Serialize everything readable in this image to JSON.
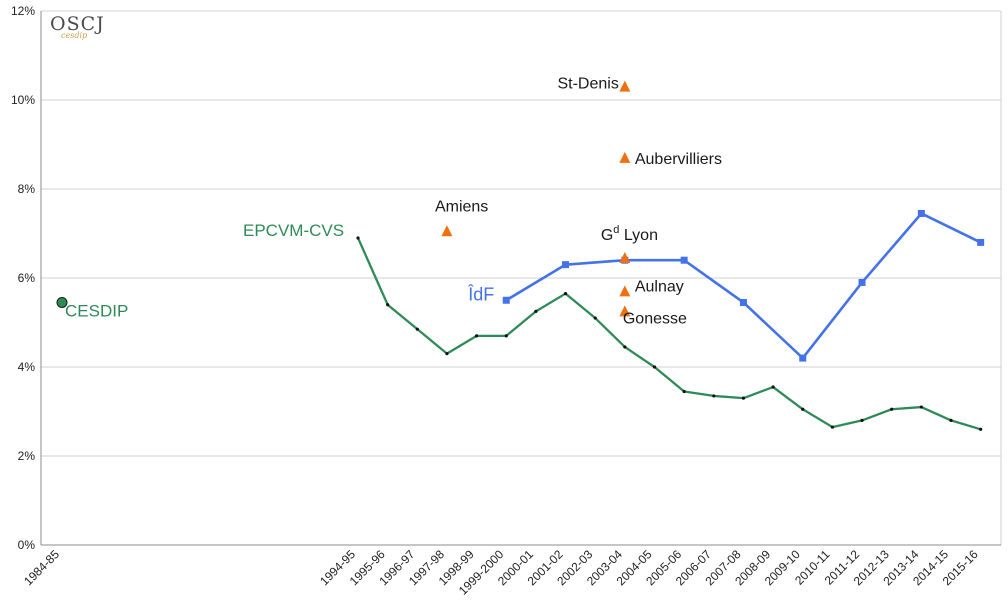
{
  "logo": {
    "main": "OSCJ",
    "sub": "cesdip"
  },
  "chart_data": {
    "type": "line",
    "ylim": [
      0,
      12
    ],
    "yticks": [
      "0%",
      "2%",
      "4%",
      "6%",
      "8%",
      "10%",
      "12%"
    ],
    "categories": [
      "1984-85",
      "1994-95",
      "1995-96",
      "1996-97",
      "1997-98",
      "1998-99",
      "1999-2000",
      "2000-01",
      "2001-02",
      "2002-03",
      "2003-04",
      "2004-05",
      "2005-06",
      "2006-07",
      "2007-08",
      "2008-09",
      "2009-10",
      "2010-11",
      "2011-12",
      "2012-13",
      "2013-14",
      "2014-15",
      "2015-16"
    ],
    "series": [
      {
        "name": "EPCVM-CVS",
        "color": "#2e8b57",
        "x": [
          "1994-95",
          "1995-96",
          "1996-97",
          "1997-98",
          "1998-99",
          "1999-2000",
          "2000-01",
          "2001-02",
          "2002-03",
          "2003-04",
          "2004-05",
          "2005-06",
          "2006-07",
          "2007-08",
          "2008-09",
          "2009-10",
          "2010-11",
          "2011-12",
          "2012-13",
          "2013-14",
          "2014-15",
          "2015-16"
        ],
        "y": [
          6.9,
          5.4,
          4.85,
          4.3,
          4.7,
          4.7,
          5.25,
          5.65,
          5.1,
          4.45,
          4.0,
          3.45,
          3.35,
          3.3,
          3.55,
          3.05,
          2.65,
          2.8,
          3.05,
          3.1,
          2.8,
          2.6
        ]
      },
      {
        "name": "ÎdF",
        "color": "#4472e8",
        "x": [
          "1999-2000",
          "2001-02",
          "2003-04",
          "2005-06",
          "2007-08",
          "2009-10",
          "2011-12",
          "2013-14",
          "2015-16"
        ],
        "y": [
          5.5,
          6.3,
          6.4,
          6.4,
          5.45,
          4.2,
          5.9,
          7.45,
          6.8
        ]
      },
      {
        "name": "CESDIP",
        "color": "#2e8b57",
        "x": [
          "1984-85"
        ],
        "y": [
          5.45
        ]
      }
    ],
    "points": [
      {
        "name": "Amiens",
        "x": "1997-98",
        "y": 7.05,
        "color": "#f07010"
      },
      {
        "name": "St-Denis",
        "x": "2003-04",
        "y": 10.3,
        "color": "#f07010"
      },
      {
        "name": "Aubervilliers",
        "x": "2003-04",
        "y": 8.7,
        "color": "#f07010"
      },
      {
        "name": "Gd Lyon",
        "x": "2003-04",
        "y": 6.45,
        "color": "#f07010"
      },
      {
        "name": "Aulnay",
        "x": "2003-04",
        "y": 5.7,
        "color": "#f07010"
      },
      {
        "name": "Gonesse",
        "x": "2003-04",
        "y": 5.25,
        "color": "#f07010"
      }
    ]
  }
}
